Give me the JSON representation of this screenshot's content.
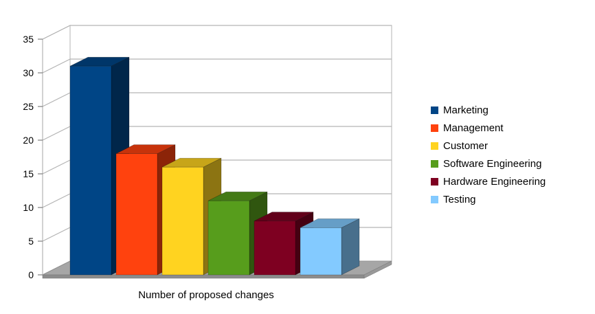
{
  "chart_data": {
    "type": "bar",
    "style": "3d-bar",
    "title": "",
    "xlabel": "Number of proposed changes",
    "ylabel": "",
    "ylim": [
      0,
      35
    ],
    "yticks": [
      0,
      5,
      10,
      15,
      20,
      25,
      30,
      35
    ],
    "grid": true,
    "legend_position": "right",
    "categories": [
      "Marketing",
      "Management",
      "Customer",
      "Software Engineering",
      "Hardware Engineering",
      "Testing"
    ],
    "values": [
      31,
      18,
      16,
      11,
      8,
      7
    ],
    "colors": [
      "#004586",
      "#ff420e",
      "#ffd320",
      "#579d1c",
      "#7e0021",
      "#83caff"
    ],
    "wall_color": "#ffffff",
    "gridline_color": "#b3b3b3",
    "floor_color": "#a6a6a6",
    "axis_text_color": "#000000"
  }
}
